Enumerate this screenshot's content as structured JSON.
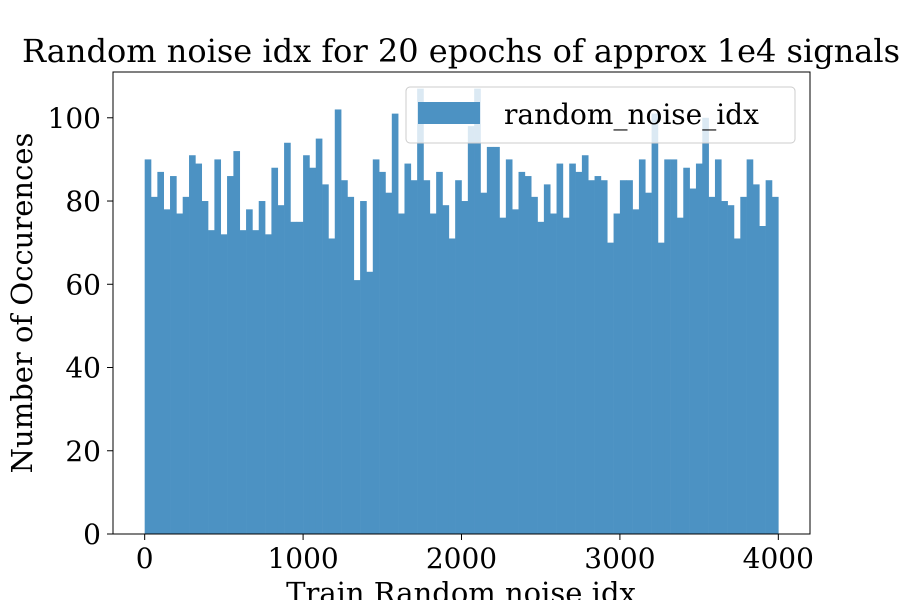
{
  "chart_data": {
    "type": "bar",
    "title": "Random noise idx for 20 epochs of approx 1e4 signals",
    "xlabel": "Train Random noise idx",
    "ylabel": "Number of Occurences",
    "xlim": [
      -200,
      4200
    ],
    "ylim": [
      0,
      111
    ],
    "x_ticks": [
      0,
      1000,
      2000,
      3000,
      4000
    ],
    "y_ticks": [
      0,
      20,
      40,
      60,
      80,
      100
    ],
    "bin_start": 0,
    "bin_width": 40,
    "legend": {
      "label": "random_noise_idx",
      "position": "upper right"
    },
    "color": "#4c92c3",
    "series": [
      {
        "name": "random_noise_idx",
        "values": [
          90,
          81,
          87,
          78,
          86,
          77,
          81,
          91,
          89,
          80,
          73,
          90,
          72,
          86,
          92,
          73,
          78,
          73,
          80,
          72,
          88,
          79,
          94,
          75,
          75,
          91,
          88,
          95,
          84,
          71,
          102,
          85,
          81,
          61,
          80,
          63,
          90,
          87,
          82,
          101,
          77,
          89,
          85,
          107,
          85,
          77,
          87,
          79,
          71,
          85,
          80,
          98,
          107,
          82,
          93,
          93,
          76,
          90,
          78,
          87,
          86,
          81,
          75,
          84,
          77,
          89,
          76,
          89,
          87,
          91,
          85,
          86,
          85,
          70,
          77,
          85,
          85,
          78,
          90,
          82,
          101,
          70,
          90,
          90,
          76,
          88,
          83,
          89,
          100,
          81,
          90,
          80,
          79,
          71,
          81,
          90,
          84,
          74,
          85,
          81
        ]
      }
    ],
    "grid": false
  }
}
